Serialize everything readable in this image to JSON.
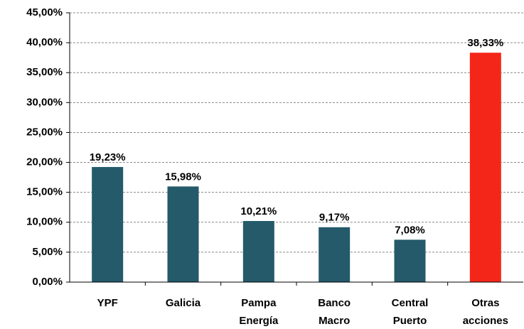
{
  "chart_data": {
    "type": "bar",
    "categories": [
      "YPF",
      "Galicia",
      "Pampa Energía",
      "Banco Macro",
      "Central Puerto",
      "Otras acciones"
    ],
    "values": [
      19.23,
      15.98,
      10.21,
      9.17,
      7.08,
      38.33
    ],
    "value_labels": [
      "19,23%",
      "15,98%",
      "10,21%",
      "9,17%",
      "7,08%",
      "38,33%"
    ],
    "colors": [
      "#245a6a",
      "#245a6a",
      "#245a6a",
      "#245a6a",
      "#245a6a",
      "#f4261a"
    ],
    "ylim": [
      0,
      45
    ],
    "yticks": [
      {
        "value": 0,
        "label": "0,00%"
      },
      {
        "value": 5,
        "label": "5,00%"
      },
      {
        "value": 10,
        "label": "10,00%"
      },
      {
        "value": 15,
        "label": "15,00%"
      },
      {
        "value": 20,
        "label": "20,00%"
      },
      {
        "value": 25,
        "label": "25,00%"
      },
      {
        "value": 30,
        "label": "30,00%"
      },
      {
        "value": 35,
        "label": "35,00%"
      },
      {
        "value": 40,
        "label": "40,00%"
      },
      {
        "value": 45,
        "label": "45,00%"
      }
    ],
    "grid": true
  }
}
